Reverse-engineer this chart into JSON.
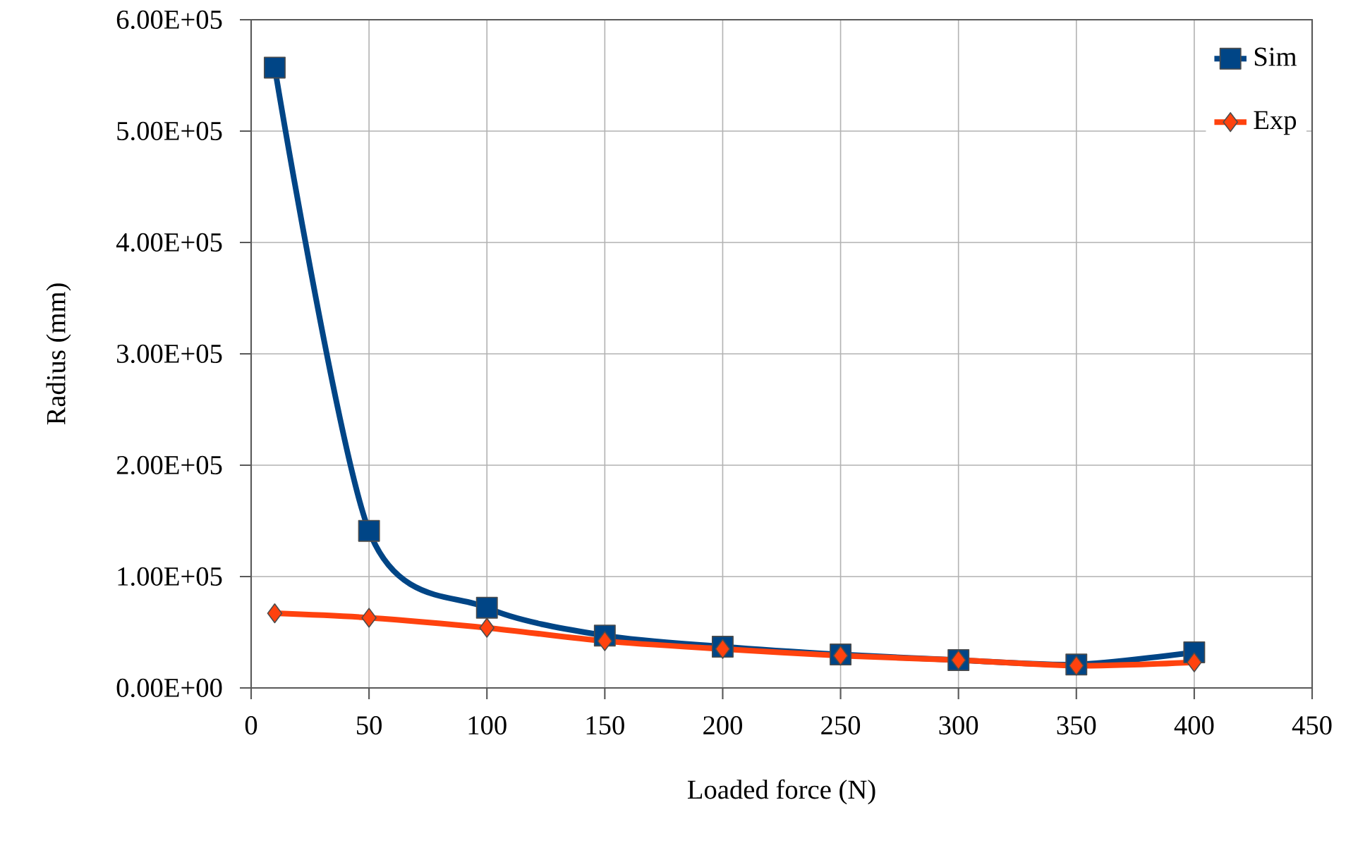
{
  "chart_data": {
    "type": "line",
    "xlabel": "Loaded force (N)",
    "ylabel": "Radius (mm)",
    "x": [
      10,
      50,
      100,
      150,
      200,
      250,
      300,
      350,
      400
    ],
    "series": [
      {
        "name": "Sim",
        "color": "#004586",
        "marker": "square",
        "values": [
          557000,
          141000,
          72000,
          47000,
          37000,
          30000,
          25000,
          21000,
          32000
        ]
      },
      {
        "name": "Exp",
        "color": "#ff420e",
        "marker": "diamond",
        "values": [
          67000,
          63000,
          54000,
          42000,
          35000,
          29000,
          25000,
          20000,
          23000
        ]
      }
    ],
    "xlim": [
      0,
      450
    ],
    "xticks": [
      0,
      50,
      100,
      150,
      200,
      250,
      300,
      350,
      400,
      450
    ],
    "ylim": [
      0,
      600000
    ],
    "yticks": [
      {
        "value": 0,
        "label": "0.00E+00"
      },
      {
        "value": 100000,
        "label": "1.00E+05"
      },
      {
        "value": 200000,
        "label": "2.00E+05"
      },
      {
        "value": 300000,
        "label": "3.00E+05"
      },
      {
        "value": 400000,
        "label": "4.00E+05"
      },
      {
        "value": 500000,
        "label": "5.00E+05"
      },
      {
        "value": 600000,
        "label": "6.00E+05"
      }
    ],
    "grid": true,
    "legend": "top right",
    "line_style": "solid"
  }
}
